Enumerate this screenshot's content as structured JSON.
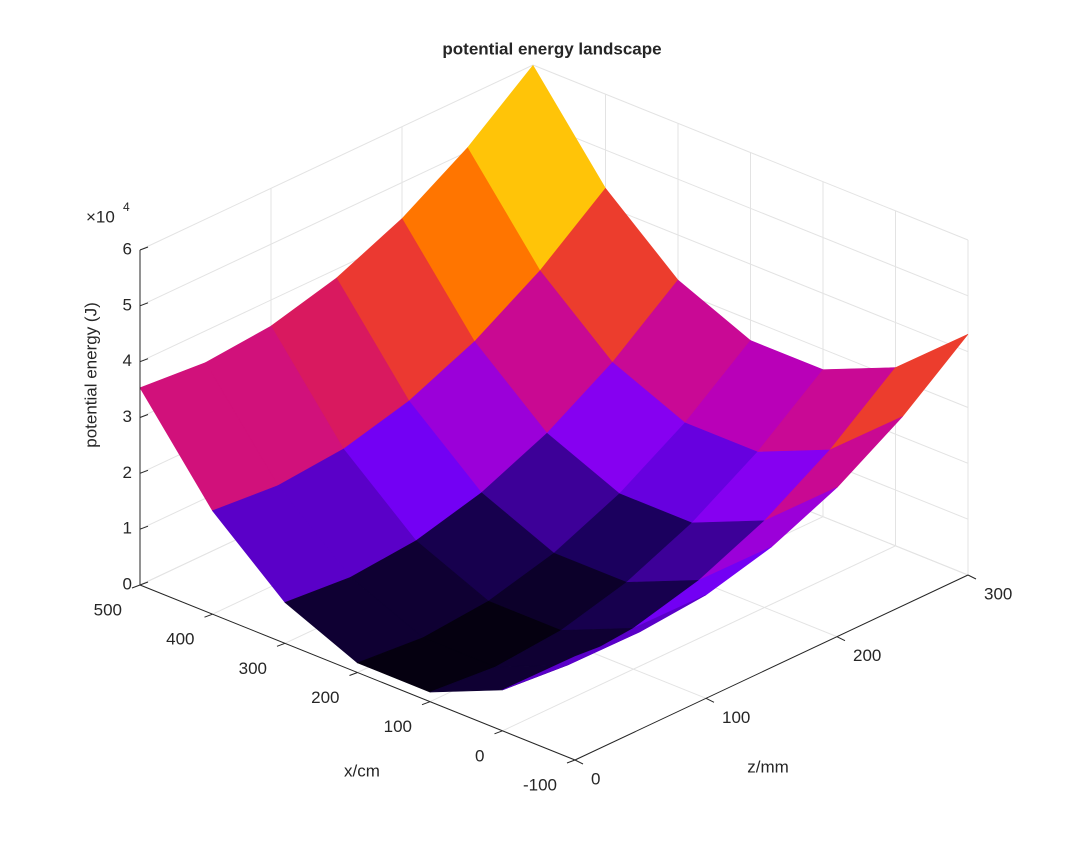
{
  "chart_data": {
    "type": "surface",
    "title": "potential energy landscape",
    "xlabel": "x/cm",
    "ylabel": "z/mm",
    "zlabel": "potential energy (J)",
    "z_multiplier": {
      "base": "×10",
      "exponent": "4"
    },
    "x": [
      -100,
      0,
      100,
      200,
      300,
      400,
      500
    ],
    "y": [
      0,
      50,
      100,
      150,
      200,
      250,
      300
    ],
    "values": [
      [
        18525,
        7325,
        1725,
        1725,
        7325,
        18525,
        35325
      ],
      [
        17500,
        6300,
        700,
        700,
        6300,
        17500,
        34300
      ],
      [
        18525,
        7325,
        1725,
        1725,
        7325,
        18525,
        35325
      ],
      [
        21600,
        10400,
        4800,
        4800,
        10400,
        21600,
        38400
      ],
      [
        26725,
        15525,
        9925,
        9925,
        15525,
        26725,
        43525
      ],
      [
        33900,
        22700,
        17100,
        17100,
        22700,
        33900,
        50700
      ],
      [
        43125,
        31925,
        26325,
        26325,
        31925,
        43125,
        59925
      ]
    ],
    "xlim": [
      -100,
      500
    ],
    "xticks": [
      -100,
      0,
      100,
      200,
      300,
      400,
      500
    ],
    "ylim": [
      0,
      300
    ],
    "yticks": [
      0,
      100,
      200,
      300
    ],
    "zlim": [
      0,
      60000
    ],
    "zticks": [
      {
        "value": 0,
        "label": "0"
      },
      {
        "value": 10000,
        "label": "1"
      },
      {
        "value": 20000,
        "label": "2"
      },
      {
        "value": 30000,
        "label": "3"
      },
      {
        "value": 40000,
        "label": "4"
      },
      {
        "value": 50000,
        "label": "5"
      },
      {
        "value": 60000,
        "label": "6"
      }
    ],
    "grid": true,
    "colormap": [
      "#000000",
      "#1c0060",
      "#7a00ff",
      "#c000b0",
      "#e0204a",
      "#ff6a00",
      "#ffb000",
      "#ffff20",
      "#ffffff"
    ]
  }
}
